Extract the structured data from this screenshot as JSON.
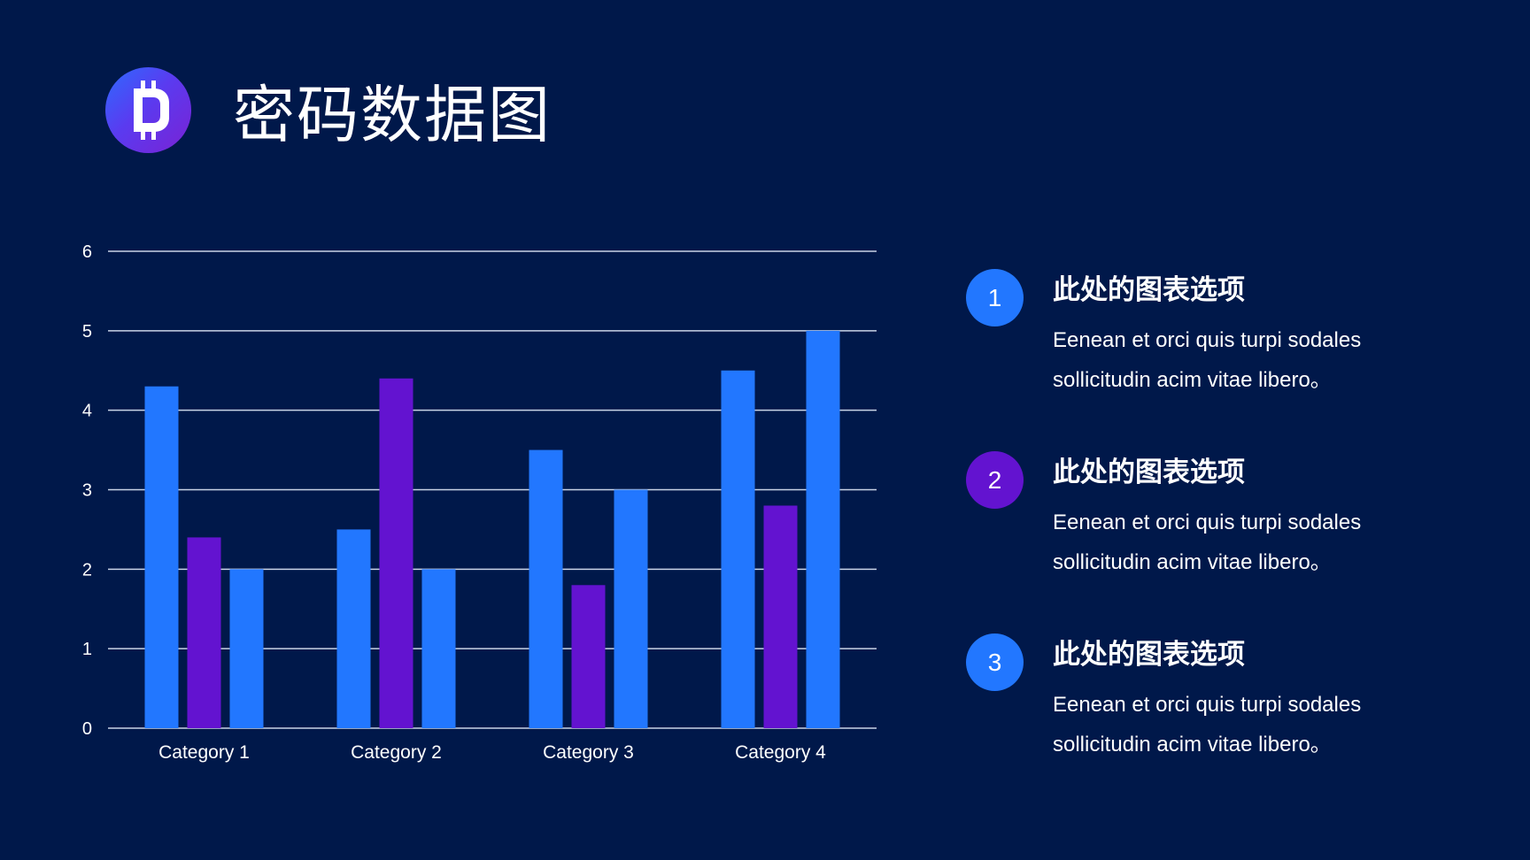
{
  "title": "密码数据图",
  "logo_icon": "cryptocurrency-coin-icon",
  "colors": {
    "background": "#00184A",
    "blue": "#2277FF",
    "purple": "#6313D0",
    "gridline": "#C9D3E6"
  },
  "chart_data": {
    "type": "bar",
    "categories": [
      "Category 1",
      "Category 2",
      "Category 3",
      "Category 4"
    ],
    "series": [
      {
        "values": [
          4.3,
          2.5,
          3.5,
          4.5
        ],
        "color": "#2277FF"
      },
      {
        "values": [
          2.4,
          4.4,
          1.8,
          2.8
        ],
        "color": "#6313D0"
      },
      {
        "values": [
          2,
          2,
          3,
          5
        ],
        "color": "#2277FF"
      }
    ],
    "yticks": [
      "0",
      "1",
      "2",
      "3",
      "4",
      "5",
      "6"
    ],
    "ylim": [
      0,
      6
    ],
    "grid": true,
    "legend": "none"
  },
  "legend_items": [
    {
      "number": "1",
      "title": "此处的图表选项",
      "line1": "Eenean et orci quis turpi sodales",
      "line2": "sollicitudin acim vitae libero。",
      "color": "#2277FF"
    },
    {
      "number": "2",
      "title": "此处的图表选项",
      "line1": "Eenean et orci quis turpi sodales",
      "line2": "sollicitudin acim vitae libero。",
      "color": "#6313D0"
    },
    {
      "number": "3",
      "title": "此处的图表选项",
      "line1": "Eenean et orci quis turpi sodales",
      "line2": "sollicitudin acim vitae libero。",
      "color": "#2277FF"
    }
  ]
}
